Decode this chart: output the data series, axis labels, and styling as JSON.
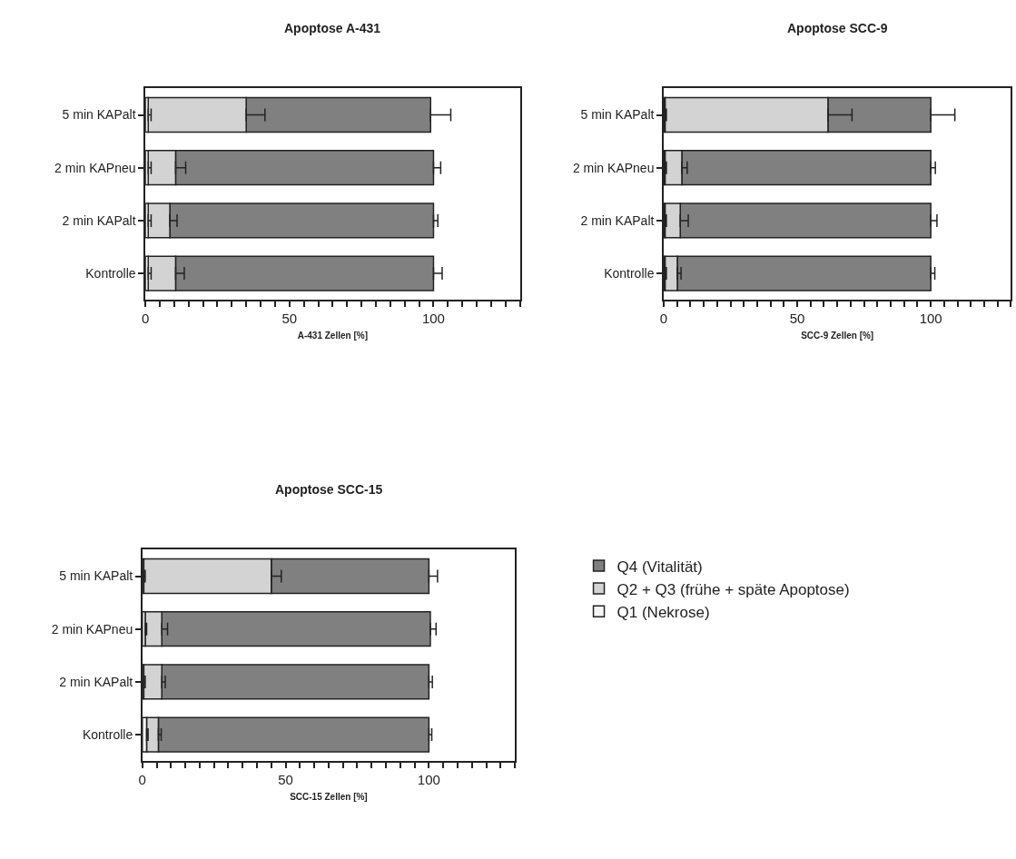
{
  "chart_data": [
    {
      "type": "bar",
      "orientation": "horizontal",
      "stacked": true,
      "title": "Apoptose A-431",
      "xlabel": "A-431 Zellen [%]",
      "categories": [
        "5 min KAPalt",
        "2 min KAPneu",
        "2 min KAPalt",
        "Kontrolle"
      ],
      "xlim": [
        0,
        130
      ],
      "xticks": [
        0,
        {
          "value": 5,
          "label": null
        },
        {
          "value": 10,
          "label": null
        },
        {
          "value": 15,
          "label": null
        },
        {
          "value": 20,
          "label": null
        },
        {
          "value": 25,
          "label": null
        },
        {
          "value": 30,
          "label": null
        },
        {
          "value": 35,
          "label": null
        },
        {
          "value": 40,
          "label": null
        },
        {
          "value": 45,
          "label": null
        },
        50,
        {
          "value": 55,
          "label": null
        },
        {
          "value": 60,
          "label": null
        },
        {
          "value": 65,
          "label": null
        },
        {
          "value": 70,
          "label": null
        },
        {
          "value": 75,
          "label": null
        },
        {
          "value": 80,
          "label": null
        },
        {
          "value": 85,
          "label": null
        },
        {
          "value": 90,
          "label": null
        },
        {
          "value": 95,
          "label": null
        },
        100,
        {
          "value": 105,
          "label": null
        },
        {
          "value": 110,
          "label": null
        },
        {
          "value": 115,
          "label": null
        },
        {
          "value": 120,
          "label": null
        },
        {
          "value": 125,
          "label": null
        },
        {
          "value": 130,
          "label": null
        }
      ],
      "legend": "right",
      "series": [
        {
          "name": "Q1 (Nekrose)",
          "color": "#f5f5f5",
          "values": [
            1,
            1,
            1,
            1
          ],
          "errors": [
            [
              1,
              2
            ],
            [
              1,
              2
            ],
            [
              1,
              2
            ],
            [
              1,
              2
            ]
          ]
        },
        {
          "name": "Q2 + Q3 (frühe + späte Apoptose)",
          "color": "#d3d3d3",
          "values": [
            34,
            9.5,
            7.5,
            9.5
          ],
          "errors": [
            [
              35,
              41.5
            ],
            [
              10.5,
              14
            ],
            [
              8.5,
              11
            ],
            [
              10.5,
              13.5
            ]
          ]
        },
        {
          "name": "Q4 (Vitalität)",
          "color": "#808080",
          "values": [
            64,
            89.5,
            91.5,
            89.5
          ],
          "errors": [
            [
              99,
              106
            ],
            [
              100,
              102.5
            ],
            [
              100,
              101.5
            ],
            [
              100,
              103
            ]
          ]
        }
      ]
    },
    {
      "type": "bar",
      "orientation": "horizontal",
      "stacked": true,
      "title": "Apoptose SCC-9",
      "xlabel": "SCC-9 Zellen [%]",
      "categories": [
        "5 min KAPalt",
        "2 min KAPneu",
        "2 min KAPalt",
        "Kontrolle"
      ],
      "xlim": [
        0,
        130
      ],
      "xticks": [
        0,
        {
          "value": 5,
          "label": null
        },
        {
          "value": 10,
          "label": null
        },
        {
          "value": 15,
          "label": null
        },
        {
          "value": 20,
          "label": null
        },
        {
          "value": 25,
          "label": null
        },
        {
          "value": 30,
          "label": null
        },
        {
          "value": 35,
          "label": null
        },
        {
          "value": 40,
          "label": null
        },
        {
          "value": 45,
          "label": null
        },
        50,
        {
          "value": 55,
          "label": null
        },
        {
          "value": 60,
          "label": null
        },
        {
          "value": 65,
          "label": null
        },
        {
          "value": 70,
          "label": null
        },
        {
          "value": 75,
          "label": null
        },
        {
          "value": 80,
          "label": null
        },
        {
          "value": 85,
          "label": null
        },
        {
          "value": 90,
          "label": null
        },
        {
          "value": 95,
          "label": null
        },
        100,
        {
          "value": 105,
          "label": null
        },
        {
          "value": 110,
          "label": null
        },
        {
          "value": 115,
          "label": null
        },
        {
          "value": 120,
          "label": null
        },
        {
          "value": 125,
          "label": null
        },
        {
          "value": 130,
          "label": null
        }
      ],
      "legend": "right",
      "series": [
        {
          "name": "Q1 (Nekrose)",
          "color": "#f5f5f5",
          "values": [
            0.5,
            0.5,
            0.5,
            0.5
          ],
          "errors": [
            [
              0.5,
              1
            ],
            [
              0.5,
              1
            ],
            [
              0.5,
              1
            ],
            [
              0.5,
              1
            ]
          ]
        },
        {
          "name": "Q2 + Q3 (frühe + späte Apoptose)",
          "color": "#d3d3d3",
          "values": [
            61,
            6.3,
            5.7,
            4.6
          ],
          "errors": [
            [
              61.5,
              70.5
            ],
            [
              6.8,
              8.8
            ],
            [
              6.2,
              9.2
            ],
            [
              5.1,
              6.5
            ]
          ]
        },
        {
          "name": "Q4 (Vitalität)",
          "color": "#808080",
          "values": [
            38.5,
            93.2,
            93.8,
            94.9
          ],
          "errors": [
            [
              100,
              109
            ],
            [
              100,
              101.7
            ],
            [
              100,
              102.3
            ],
            [
              100,
              101.5
            ]
          ]
        }
      ]
    },
    {
      "type": "bar",
      "orientation": "horizontal",
      "stacked": true,
      "title": "Apoptose SCC-15",
      "xlabel": "SCC-15 Zellen [%]",
      "categories": [
        "5 min KAPalt",
        "2 min KAPneu",
        "2 min KAPalt",
        "Kontrolle"
      ],
      "xlim": [
        0,
        130
      ],
      "xticks": [
        0,
        {
          "value": 5,
          "label": null
        },
        {
          "value": 10,
          "label": null
        },
        {
          "value": 15,
          "label": null
        },
        {
          "value": 20,
          "label": null
        },
        {
          "value": 25,
          "label": null
        },
        {
          "value": 30,
          "label": null
        },
        {
          "value": 35,
          "label": null
        },
        {
          "value": 40,
          "label": null
        },
        {
          "value": 45,
          "label": null
        },
        50,
        {
          "value": 55,
          "label": null
        },
        {
          "value": 60,
          "label": null
        },
        {
          "value": 65,
          "label": null
        },
        {
          "value": 70,
          "label": null
        },
        {
          "value": 75,
          "label": null
        },
        {
          "value": 80,
          "label": null
        },
        {
          "value": 85,
          "label": null
        },
        {
          "value": 90,
          "label": null
        },
        {
          "value": 95,
          "label": null
        },
        100,
        {
          "value": 105,
          "label": null
        },
        {
          "value": 110,
          "label": null
        },
        {
          "value": 115,
          "label": null
        },
        {
          "value": 120,
          "label": null
        },
        {
          "value": 125,
          "label": null
        },
        {
          "value": 130,
          "label": null
        }
      ],
      "legend": "right",
      "series": [
        {
          "name": "Q1 (Nekrose)",
          "color": "#f5f5f5",
          "values": [
            0.5,
            1,
            0.5,
            1.5
          ],
          "errors": [
            [
              0.5,
              1
            ],
            [
              1,
              1.5
            ],
            [
              0.5,
              1
            ],
            [
              1.5,
              2
            ]
          ]
        },
        {
          "name": "Q2 + Q3 (frühe + späte Apoptose)",
          "color": "#d3d3d3",
          "values": [
            44.5,
            5.8,
            6.3,
            4.1
          ],
          "errors": [
            [
              45,
              48.5
            ],
            [
              6.8,
              8.8
            ],
            [
              6.8,
              8
            ],
            [
              5.6,
              6.6
            ]
          ]
        },
        {
          "name": "Q4 (Vitalität)",
          "color": "#808080",
          "values": [
            55,
            93.7,
            93.2,
            94.4
          ],
          "errors": [
            [
              100,
              103
            ],
            [
              100.5,
              102.5
            ],
            [
              100,
              101.2
            ],
            [
              100,
              101
            ]
          ]
        }
      ]
    }
  ]
}
